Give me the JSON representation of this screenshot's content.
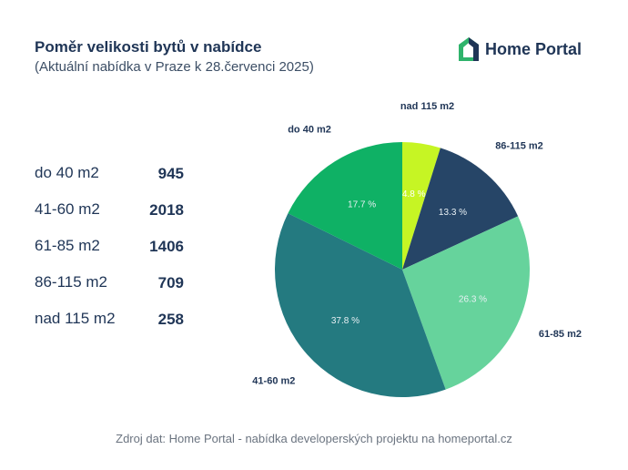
{
  "header": {
    "title": "Poměr velikosti bytů v nabídce",
    "subtitle": "(Aktuální nabídka v Praze k 28.červenci 2025)"
  },
  "brand": {
    "name": "Home Portal",
    "icon": "house-logo-icon",
    "colors": {
      "green": "#2fb36b",
      "navy": "#1f3556"
    }
  },
  "chart_data": {
    "type": "pie",
    "categories": [
      "nad 115 m2",
      "86-115 m2",
      "61-85 m2",
      "41-60 m2",
      "do 40 m2"
    ],
    "values": [
      258,
      709,
      1406,
      2018,
      945
    ],
    "percent_labels": [
      "4.8 %",
      "13.3 %",
      "26.3 %",
      "37.8 %",
      "17.7 %"
    ],
    "colors": [
      "#c6f524",
      "#264567",
      "#66d39c",
      "#247a80",
      "#0fb165"
    ],
    "start_angle_deg": 0,
    "direction": "clockwise"
  },
  "stats": [
    {
      "label": "do 40 m2",
      "value": "945"
    },
    {
      "label": "41-60 m2",
      "value": "2018"
    },
    {
      "label": "61-85 m2",
      "value": "1406"
    },
    {
      "label": "86-115 m2",
      "value": "709"
    },
    {
      "label": "nad 115 m2",
      "value": "258"
    }
  ],
  "footer": {
    "source": "Zdroj dat: Home Portal - nabídka developerských projektu na homeportal.cz"
  }
}
